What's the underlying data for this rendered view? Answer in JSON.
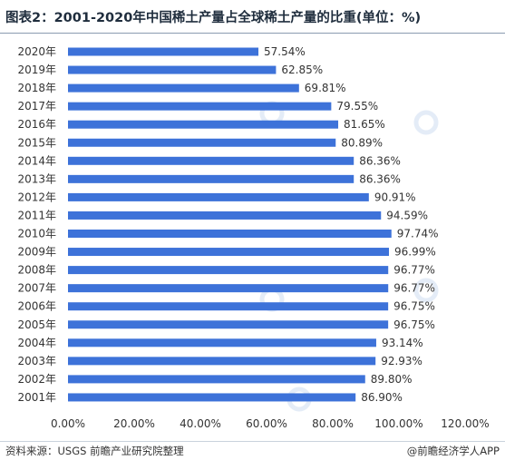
{
  "title": "图表2：2001-2020年中国稀土产量占全球稀土产量的比重(单位：%)",
  "source": "资料来源：USGS 前瞻产业研究院整理",
  "brand": "@前瞻经济学人APP",
  "colors": {
    "bar": "#3d72d9",
    "grid": "#e6e6e6",
    "text": "#333333"
  },
  "chart_data": {
    "type": "bar",
    "orientation": "horizontal",
    "categories": [
      "2020年",
      "2019年",
      "2018年",
      "2017年",
      "2016年",
      "2015年",
      "2014年",
      "2013年",
      "2012年",
      "2011年",
      "2010年",
      "2009年",
      "2008年",
      "2007年",
      "2006年",
      "2005年",
      "2004年",
      "2003年",
      "2002年",
      "2001年"
    ],
    "values": [
      57.54,
      62.85,
      69.81,
      79.55,
      81.65,
      80.89,
      86.36,
      86.36,
      90.91,
      94.59,
      97.74,
      96.99,
      96.77,
      96.77,
      96.75,
      96.75,
      93.14,
      92.93,
      89.8,
      86.9
    ],
    "data_labels": [
      "57.54%",
      "62.85%",
      "69.81%",
      "79.55%",
      "81.65%",
      "80.89%",
      "86.36%",
      "86.36%",
      "90.91%",
      "94.59%",
      "97.74%",
      "96.99%",
      "96.77%",
      "96.77%",
      "96.75%",
      "96.75%",
      "93.14%",
      "92.93%",
      "89.80%",
      "86.90%"
    ],
    "x_ticks": [
      0,
      20,
      40,
      60,
      80,
      100,
      120
    ],
    "x_tick_labels": [
      "0.00%",
      "20.00%",
      "40.00%",
      "60.00%",
      "80.00%",
      "100.00%",
      "120.00%"
    ],
    "xlim": [
      0,
      120
    ],
    "grid": false,
    "legend": "none"
  }
}
